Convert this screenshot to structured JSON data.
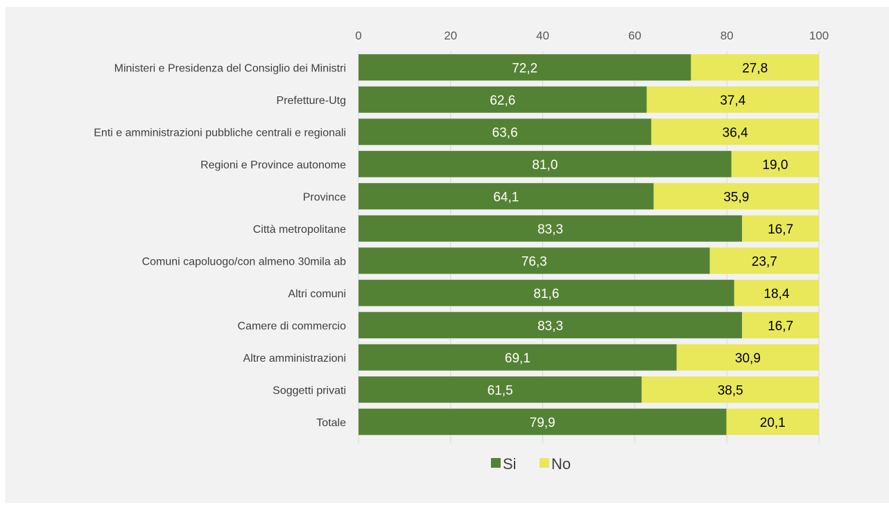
{
  "chart_data": {
    "type": "bar",
    "orientation": "horizontal",
    "stacked": true,
    "title": "",
    "xlabel": "",
    "ylabel": "",
    "xlim": [
      0,
      100
    ],
    "x_ticks": [
      "0",
      "20",
      "40",
      "60",
      "80",
      "100"
    ],
    "x_axis_position": "top",
    "grid": true,
    "legend_position": "bottom",
    "categories": [
      "Ministeri e Presidenza del Consiglio dei Ministri",
      "Prefetture-Utg",
      "Enti e amministrazioni pubbliche centrali e regionali",
      "Regioni e Province autonome",
      "Province",
      "Città metropolitane",
      "Comuni capoluogo/con almeno 30mila ab",
      "Altri comuni",
      "Camere di commercio",
      "Altre amministrazioni",
      "Soggetti privati",
      "Totale"
    ],
    "series": [
      {
        "name": "Si",
        "color": "#548235",
        "values": [
          72.2,
          62.6,
          63.6,
          81.0,
          64.1,
          83.3,
          76.3,
          81.6,
          83.3,
          69.1,
          61.5,
          79.9
        ],
        "labels": [
          "72,2",
          "62,6",
          "63,6",
          "81,0",
          "64,1",
          "83,3",
          "76,3",
          "81,6",
          "83,3",
          "69,1",
          "61,5",
          "79,9"
        ]
      },
      {
        "name": "No",
        "color": "#e8e85a",
        "values": [
          27.8,
          37.4,
          36.4,
          19.0,
          35.9,
          16.7,
          23.7,
          18.4,
          16.7,
          30.9,
          38.5,
          20.1
        ],
        "labels": [
          "27,8",
          "37,4",
          "36,4",
          "19,0",
          "35,9",
          "16,7",
          "23,7",
          "18,4",
          "16,7",
          "30,9",
          "38,5",
          "20,1"
        ]
      }
    ]
  }
}
